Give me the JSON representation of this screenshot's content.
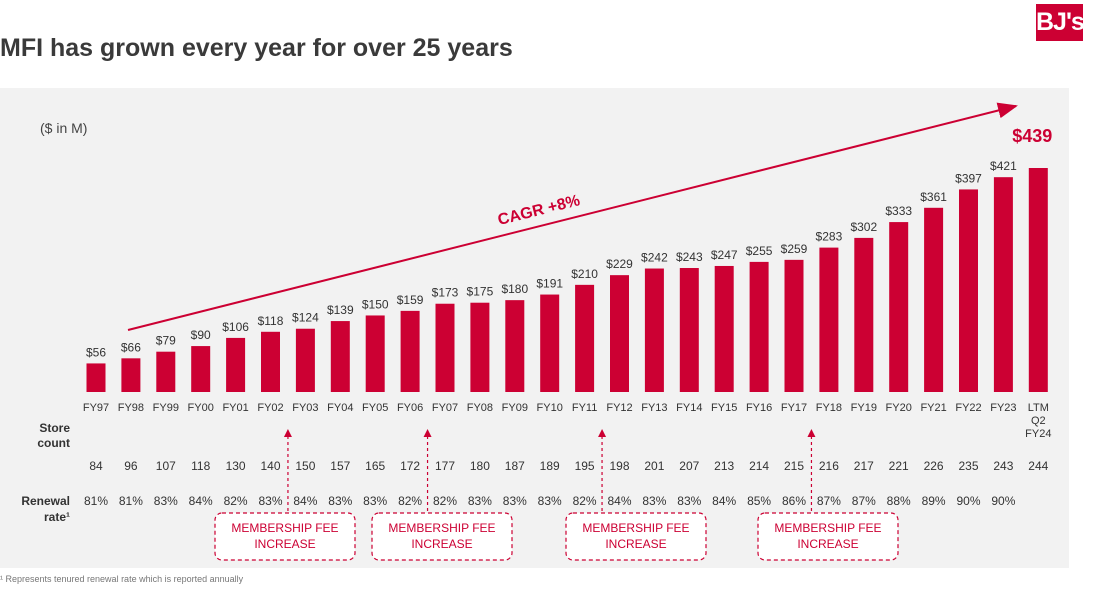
{
  "header": {
    "title": "MFI has grown every year for over 25 years",
    "logo_text": "BJ's"
  },
  "footnote": "¹ Represents tenured renewal rate which is reported annually",
  "colors": {
    "accent": "#cc0033",
    "panel": "#f2f2f2",
    "text": "#333333"
  },
  "chart_data": {
    "type": "bar",
    "unit_label": "($ in M)",
    "categories": [
      "FY97",
      "FY98",
      "FY99",
      "FY00",
      "FY01",
      "FY02",
      "FY03",
      "FY04",
      "FY05",
      "FY06",
      "FY07",
      "FY08",
      "FY09",
      "FY10",
      "FY11",
      "FY12",
      "FY13",
      "FY14",
      "FY15",
      "FY16",
      "FY17",
      "FY18",
      "FY19",
      "FY20",
      "FY21",
      "FY22",
      "FY23",
      "LTM Q2 FY24"
    ],
    "values": [
      56,
      66,
      79,
      90,
      106,
      118,
      124,
      139,
      150,
      159,
      173,
      175,
      180,
      191,
      210,
      229,
      242,
      243,
      247,
      255,
      259,
      283,
      302,
      333,
      361,
      397,
      421,
      439
    ],
    "value_labels": [
      "$56",
      "$66",
      "$79",
      "$90",
      "$106",
      "$118",
      "$124",
      "$139",
      "$150",
      "$159",
      "$173",
      "$175",
      "$180",
      "$191",
      "$210",
      "$229",
      "$242",
      "$243",
      "$247",
      "$255",
      "$259",
      "$283",
      "$302",
      "$333",
      "$361",
      "$397",
      "$421",
      ""
    ],
    "highlight_label": "$439",
    "ylim": [
      0,
      460
    ],
    "cagr_label": "CAGR +8%",
    "store_count_label": "Store count",
    "store_counts": [
      "84",
      "96",
      "107",
      "118",
      "130",
      "140",
      "150",
      "157",
      "165",
      "172",
      "177",
      "180",
      "187",
      "189",
      "195",
      "198",
      "201",
      "207",
      "213",
      "214",
      "215",
      "216",
      "217",
      "221",
      "226",
      "235",
      "243",
      "244"
    ],
    "renewal_label": "Renewal rate¹",
    "renewal_rates": [
      "81%",
      "81%",
      "83%",
      "84%",
      "82%",
      "83%",
      "84%",
      "83%",
      "83%",
      "82%",
      "82%",
      "83%",
      "83%",
      "83%",
      "82%",
      "84%",
      "83%",
      "83%",
      "84%",
      "85%",
      "86%",
      "87%",
      "87%",
      "88%",
      "89%",
      "90%",
      "90%",
      ""
    ],
    "annotations": [
      {
        "text": "MEMBERSHIP FEE INCREASE",
        "after_index": 5
      },
      {
        "text": "MEMBERSHIP FEE INCREASE",
        "after_index": 9
      },
      {
        "text": "MEMBERSHIP FEE INCREASE",
        "after_index": 14
      },
      {
        "text": "MEMBERSHIP FEE INCREASE",
        "after_index": 20
      }
    ]
  }
}
